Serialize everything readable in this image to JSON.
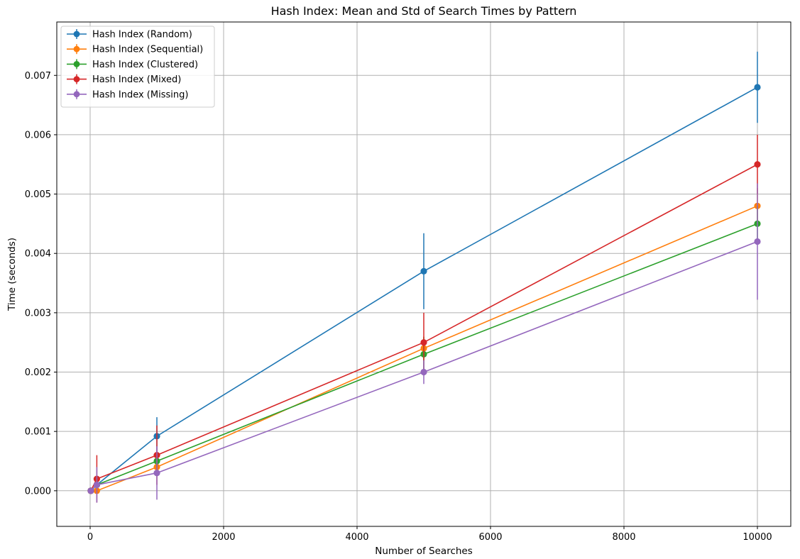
{
  "chart_data": {
    "type": "line",
    "title": "Hash Index: Mean and Std of Search Times by Pattern",
    "xlabel": "Number of Searches",
    "ylabel": "Time (seconds)",
    "xlim": [
      -500,
      10500
    ],
    "ylim": [
      -0.0006,
      0.0079
    ],
    "x_ticks": [
      0,
      2000,
      4000,
      6000,
      8000,
      10000
    ],
    "x_tick_labels": [
      "0",
      "2000",
      "4000",
      "6000",
      "8000",
      "10000"
    ],
    "y_ticks": [
      0.0,
      0.001,
      0.002,
      0.003,
      0.004,
      0.005,
      0.006,
      0.007
    ],
    "y_tick_labels": [
      "0.000",
      "0.001",
      "0.002",
      "0.003",
      "0.004",
      "0.005",
      "0.006",
      "0.007"
    ],
    "grid": true,
    "legend_position": "top-left",
    "x": [
      10,
      100,
      1000,
      5000,
      10000
    ],
    "series": [
      {
        "name": "Hash Index (Random)",
        "color": "#1f77b4",
        "values": [
          0.0,
          0.0001,
          0.00092,
          0.0037,
          0.0068
        ],
        "std": [
          2e-05,
          0.0001,
          0.00032,
          0.00064,
          0.0006
        ]
      },
      {
        "name": "Hash Index (Sequential)",
        "color": "#ff7f0e",
        "values": [
          0.0,
          0.0,
          0.0004,
          0.0024,
          0.0048
        ],
        "std": [
          1e-05,
          2e-05,
          0.0001,
          0.0002,
          0.0003
        ]
      },
      {
        "name": "Hash Index (Clustered)",
        "color": "#2ca02c",
        "values": [
          0.0,
          0.0001,
          0.0005,
          0.0023,
          0.0045
        ],
        "std": [
          1e-05,
          3e-05,
          0.0001,
          0.00029,
          0.0003
        ]
      },
      {
        "name": "Hash Index (Mixed)",
        "color": "#d62728",
        "values": [
          0.0,
          0.0002,
          0.0006,
          0.0025,
          0.0055
        ],
        "std": [
          1e-05,
          0.0004,
          0.0005,
          0.0005,
          0.0005
        ]
      },
      {
        "name": "Hash Index (Missing)",
        "color": "#9467bd",
        "values": [
          0.0,
          0.0001,
          0.0003,
          0.002,
          0.0042
        ],
        "std": [
          1e-05,
          0.0003,
          0.00045,
          0.0002,
          0.00098
        ]
      }
    ]
  }
}
